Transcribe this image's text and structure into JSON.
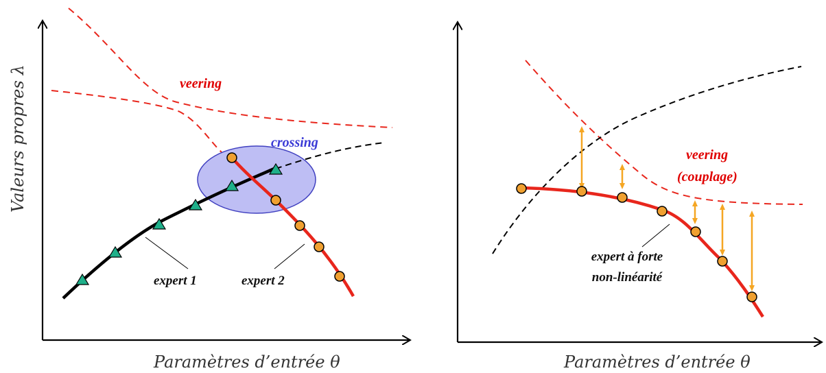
{
  "left_panel": {
    "y_axis_label": "Valeurs propres λ",
    "x_axis_label": "Paramètres d’entrée θ",
    "label_veering": "veering",
    "label_crossing": "crossing",
    "label_expert1": "expert 1",
    "label_expert2": "expert 2"
  },
  "right_panel": {
    "x_axis_label": "Paramètres d’entrée θ",
    "label_veering": "veering",
    "label_couplage": "(couplage)",
    "label_expert_line1": "expert à forte",
    "label_expert_line2": "non-linéarité"
  },
  "colors": {
    "red": "#e8261c",
    "dashed_red": "#e8261c",
    "black": "#000000",
    "marker_orange": "#f0a030",
    "marker_green": "#1fb08a",
    "ellipse_fill": "#a8a8f0",
    "ellipse_stroke": "#4040c0",
    "arrow_orange": "#f5a623"
  },
  "icons": [
    "triangle-marker-icon",
    "circle-marker-icon",
    "double-arrow-icon",
    "axis-arrow-icon"
  ]
}
